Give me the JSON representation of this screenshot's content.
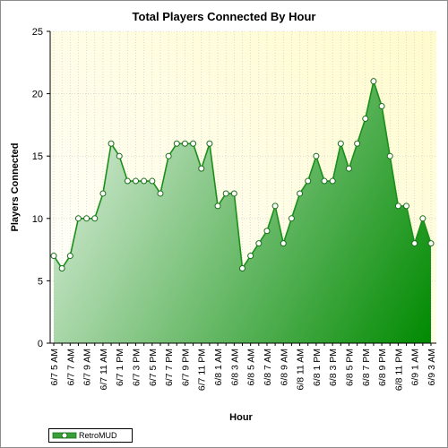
{
  "chart_data": {
    "type": "area",
    "title": "Total Players Connected By Hour",
    "xlabel": "Hour",
    "ylabel": "Players Connected",
    "ylim": [
      0,
      25
    ],
    "yticks": [
      0,
      5,
      10,
      15,
      20,
      25
    ],
    "grid": true,
    "legend_position": "bottom-left",
    "tick_labels": [
      "6/7 5 AM",
      "6/7 7 AM",
      "6/7 9 AM",
      "6/7 11 AM",
      "6/7 1 PM",
      "6/7 3 PM",
      "6/7 5 PM",
      "6/7 7 PM",
      "6/7 9 PM",
      "6/7 11 PM",
      "6/8 1 AM",
      "6/8 3 AM",
      "6/8 5 AM",
      "6/8 7 AM",
      "6/8 9 AM",
      "6/8 11 AM",
      "6/8 1 PM",
      "6/8 3 PM",
      "6/8 5 PM",
      "6/8 7 PM",
      "6/8 9 PM",
      "6/8 11 PM",
      "6/9 1 AM",
      "6/9 3 AM"
    ],
    "series": [
      {
        "name": "RetroMUD",
        "color": "#1a8f1a",
        "values": [
          7,
          6,
          7,
          10,
          10,
          10,
          12,
          16,
          15,
          13,
          13,
          13,
          13,
          12,
          15,
          16,
          16,
          16,
          14,
          16,
          11,
          12,
          12,
          6,
          7,
          8,
          9,
          11,
          8,
          10,
          12,
          13,
          15,
          13,
          13,
          16,
          14,
          16,
          18,
          21,
          19,
          15,
          11,
          11,
          8,
          10,
          8
        ]
      }
    ]
  }
}
